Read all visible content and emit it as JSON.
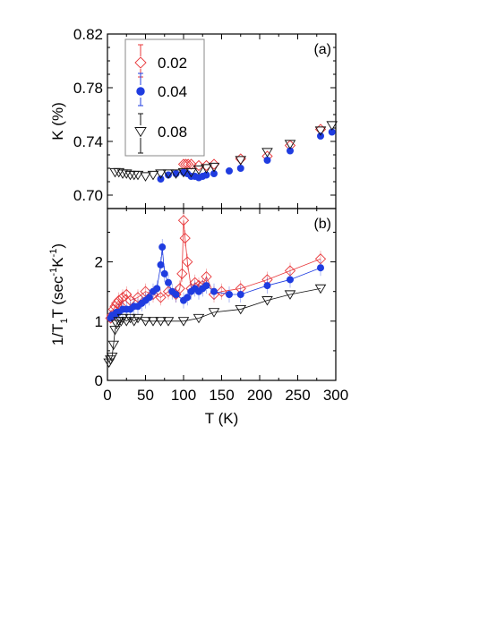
{
  "chart_data": [
    {
      "type": "scatter",
      "panel_label": "(a)",
      "ylabel": "K (%)",
      "xlim": [
        0,
        300
      ],
      "ylim": [
        0.69,
        0.82
      ],
      "yticks": [
        {
          "v": 0.7,
          "label": "0.70"
        },
        {
          "v": 0.74,
          "label": "0.74"
        },
        {
          "v": 0.78,
          "label": "0.78"
        },
        {
          "v": 0.82,
          "label": "0.82"
        }
      ],
      "legend": {
        "placement": "top-left",
        "entries": [
          {
            "series": 0,
            "label": "0.02"
          },
          {
            "series": 1,
            "label": "0.04"
          },
          {
            "series": 2,
            "label": "0.08"
          }
        ]
      },
      "series": [
        {
          "name": "0.02",
          "color": "#e8383b",
          "marker": "diamond-open",
          "line": false,
          "x": [
            100,
            103,
            106,
            110,
            120,
            130,
            140,
            175,
            210,
            240,
            280
          ],
          "y": [
            0.723,
            0.723,
            0.723,
            0.723,
            0.722,
            0.722,
            0.723,
            0.727,
            0.729,
            0.737,
            0.749
          ]
        },
        {
          "name": "0.04",
          "color": "#1f3ce0",
          "marker": "circle-filled",
          "line": false,
          "x": [
            70,
            80,
            90,
            100,
            105,
            110,
            115,
            120,
            125,
            130,
            140,
            160,
            175,
            210,
            240,
            280,
            295
          ],
          "y": [
            0.712,
            0.715,
            0.716,
            0.717,
            0.716,
            0.714,
            0.714,
            0.713,
            0.714,
            0.715,
            0.716,
            0.718,
            0.72,
            0.726,
            0.733,
            0.744,
            0.747
          ]
        },
        {
          "name": "0.08",
          "color": "#111111",
          "marker": "triangle-down-open",
          "line": false,
          "x": [
            10,
            15,
            20,
            25,
            30,
            35,
            40,
            50,
            60,
            70,
            80,
            90,
            100,
            110,
            120,
            130,
            140,
            175,
            210,
            240,
            280,
            295
          ],
          "y": [
            0.717,
            0.717,
            0.716,
            0.716,
            0.715,
            0.715,
            0.715,
            0.714,
            0.715,
            0.716,
            0.716,
            0.716,
            0.717,
            0.717,
            0.719,
            0.72,
            0.721,
            0.726,
            0.732,
            0.738,
            0.748,
            0.752
          ]
        }
      ]
    },
    {
      "type": "line",
      "panel_label": "(b)",
      "xlabel": "T (K)",
      "ylabel": "1/T1T (sec-1K-1)",
      "xlim": [
        0,
        300
      ],
      "ylim": [
        0,
        2.9
      ],
      "xticks": [
        {
          "v": 0,
          "label": "0"
        },
        {
          "v": 50,
          "label": "50"
        },
        {
          "v": 100,
          "label": "100"
        },
        {
          "v": 150,
          "label": "150"
        },
        {
          "v": 200,
          "label": "200"
        },
        {
          "v": 250,
          "label": "250"
        },
        {
          "v": 300,
          "label": "300"
        }
      ],
      "yticks": [
        {
          "v": 0,
          "label": "0"
        },
        {
          "v": 1,
          "label": "1"
        },
        {
          "v": 2,
          "label": "2"
        }
      ],
      "series": [
        {
          "name": "0.02",
          "color": "#e8383b",
          "marker": "diamond-open",
          "line": true,
          "x": [
            4.2,
            6,
            8,
            10,
            12,
            15,
            18,
            20,
            25,
            30,
            40,
            50,
            60,
            70,
            80,
            90,
            95,
            98,
            100,
            102,
            105,
            110,
            115,
            120,
            125,
            130,
            140,
            150,
            175,
            210,
            240,
            280
          ],
          "y": [
            1.05,
            1.1,
            1.2,
            1.25,
            1.3,
            1.35,
            1.25,
            1.4,
            1.45,
            1.35,
            1.4,
            1.5,
            1.45,
            1.4,
            1.5,
            1.45,
            1.55,
            1.8,
            2.7,
            2.4,
            2.0,
            1.55,
            1.65,
            1.6,
            1.6,
            1.75,
            1.45,
            1.5,
            1.55,
            1.7,
            1.85,
            2.05
          ]
        },
        {
          "name": "0.04",
          "color": "#1f3ce0",
          "marker": "circle-filled",
          "line": true,
          "x": [
            4.2,
            6,
            8,
            10,
            12,
            15,
            20,
            25,
            30,
            35,
            40,
            45,
            50,
            55,
            60,
            65,
            70,
            72,
            75,
            80,
            85,
            90,
            100,
            105,
            110,
            115,
            120,
            125,
            130,
            140,
            160,
            175,
            210,
            240,
            280
          ],
          "y": [
            1.05,
            1.1,
            1.1,
            1.1,
            1.15,
            1.15,
            1.2,
            1.2,
            1.2,
            1.25,
            1.25,
            1.3,
            1.35,
            1.4,
            1.5,
            1.55,
            1.95,
            2.25,
            1.8,
            1.65,
            1.5,
            1.45,
            1.35,
            1.4,
            1.5,
            1.55,
            1.5,
            1.55,
            1.6,
            1.5,
            1.45,
            1.45,
            1.6,
            1.7,
            1.9
          ]
        },
        {
          "name": "0.08",
          "color": "#111111",
          "marker": "triangle-down-open",
          "line": true,
          "x": [
            2,
            4,
            6,
            8,
            10,
            12,
            15,
            18,
            20,
            25,
            30,
            35,
            40,
            50,
            60,
            70,
            80,
            100,
            120,
            140,
            175,
            210,
            240,
            280
          ],
          "y": [
            0.3,
            0.35,
            0.4,
            0.6,
            0.85,
            0.95,
            1.0,
            1.0,
            1.05,
            1.0,
            1.05,
            1.0,
            1.05,
            1.0,
            1.0,
            1.0,
            1.0,
            1.0,
            1.05,
            1.15,
            1.2,
            1.35,
            1.45,
            1.55
          ]
        }
      ]
    }
  ]
}
